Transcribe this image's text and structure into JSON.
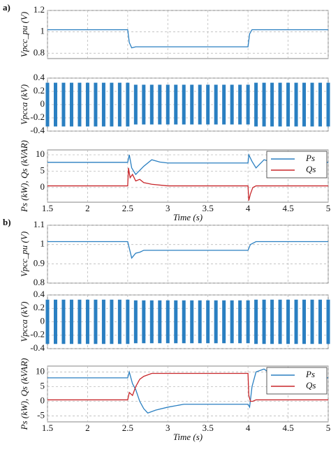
{
  "chart_data": [
    {
      "type": "line",
      "panel_label": "a)",
      "ylabel": "Vpcc_pu (V)",
      "xlim": [
        1.5,
        5
      ],
      "ylim": [
        0.75,
        1.2
      ],
      "yticks": [
        0.8,
        1,
        1.2
      ],
      "xticks": [
        1.5,
        2,
        2.5,
        3,
        3.5,
        4,
        4.5,
        5
      ],
      "grid": true,
      "series": [
        {
          "color": "#2a7fc1",
          "x": [
            1.5,
            2.5,
            2.52,
            2.55,
            2.6,
            3,
            4,
            4.02,
            4.05,
            5
          ],
          "values": [
            1.02,
            1.02,
            0.9,
            0.85,
            0.86,
            0.86,
            0.86,
            0.98,
            1.02,
            1.02
          ]
        }
      ]
    },
    {
      "type": "oscillation",
      "ylabel": "Vpcca (kV)",
      "xlim": [
        1.5,
        5
      ],
      "ylim": [
        -0.4,
        0.4
      ],
      "yticks": [
        -0.4,
        -0.2,
        0,
        0.2,
        0.4
      ],
      "xticks": [
        1.5,
        2,
        2.5,
        3,
        3.5,
        4,
        4.5,
        5
      ],
      "grid": true,
      "color": "#2a7fc1",
      "x": [
        1.5,
        1.6,
        1.7,
        1.8,
        1.9,
        2,
        2.1,
        2.2,
        2.3,
        2.4,
        2.5,
        2.6,
        2.7,
        2.8,
        2.9,
        3,
        3.1,
        3.2,
        3.3,
        3.4,
        3.5,
        3.6,
        3.7,
        3.8,
        3.9,
        4,
        4.1,
        4.2,
        4.3,
        4.4,
        4.5,
        4.6,
        4.7,
        4.8,
        4.9,
        5
      ],
      "amplitude": [
        0.33,
        0.33,
        0.33,
        0.33,
        0.33,
        0.33,
        0.33,
        0.33,
        0.33,
        0.33,
        0.33,
        0.3,
        0.3,
        0.3,
        0.3,
        0.3,
        0.3,
        0.3,
        0.3,
        0.3,
        0.3,
        0.3,
        0.3,
        0.3,
        0.3,
        0.3,
        0.33,
        0.33,
        0.33,
        0.33,
        0.33,
        0.33,
        0.33,
        0.33,
        0.33,
        0.33
      ]
    },
    {
      "type": "line",
      "ylabel": "Ps (kW), Qs (kVAR)",
      "xlabel": "Time (s)",
      "xlim": [
        1.5,
        5
      ],
      "ylim": [
        -4.5,
        11.5
      ],
      "yticks": [
        0,
        5,
        10
      ],
      "xticks": [
        1.5,
        2,
        2.5,
        3,
        3.5,
        4,
        4.5,
        5
      ],
      "grid": true,
      "legend": "upper right",
      "series": [
        {
          "name": "Ps",
          "color": "#2a7fc1",
          "x": [
            1.5,
            2.5,
            2.52,
            2.55,
            2.6,
            2.7,
            2.8,
            2.9,
            3,
            4,
            4.01,
            4.05,
            4.1,
            4.2,
            4.3,
            5
          ],
          "values": [
            7.7,
            7.7,
            10,
            6,
            4,
            6.5,
            8.5,
            7.8,
            7.5,
            7.5,
            10,
            8,
            6,
            8.5,
            7.7,
            7.7
          ]
        },
        {
          "name": "Qs",
          "color": "#c8262a",
          "x": [
            1.5,
            2.5,
            2.51,
            2.53,
            2.56,
            2.6,
            2.65,
            2.7,
            2.8,
            3,
            4,
            4.01,
            4.03,
            4.06,
            4.1,
            5
          ],
          "values": [
            0.5,
            0.5,
            6,
            3,
            4,
            2,
            2.5,
            1.5,
            1,
            0.5,
            0.5,
            -4,
            -2,
            0,
            0.5,
            0.5
          ]
        }
      ]
    },
    {
      "type": "line",
      "panel_label": "b)",
      "ylabel": "Vpcc_pu (V)",
      "xlim": [
        1.5,
        5
      ],
      "ylim": [
        0.8,
        1.1
      ],
      "yticks": [
        0.8,
        0.9,
        1,
        1.1
      ],
      "xticks": [
        1.5,
        2,
        2.5,
        3,
        3.5,
        4,
        4.5,
        5
      ],
      "grid": true,
      "series": [
        {
          "color": "#2a7fc1",
          "x": [
            1.5,
            2.5,
            2.55,
            2.6,
            2.65,
            2.7,
            3,
            4,
            4.03,
            4.1,
            5
          ],
          "values": [
            1.015,
            1.015,
            0.93,
            0.955,
            0.96,
            0.97,
            0.97,
            0.97,
            1.0,
            1.015,
            1.015
          ]
        }
      ]
    },
    {
      "type": "oscillation",
      "ylabel": "Vpcca (kV)",
      "xlim": [
        1.5,
        5
      ],
      "ylim": [
        -0.4,
        0.4
      ],
      "yticks": [
        -0.4,
        -0.2,
        0,
        0.2,
        0.4
      ],
      "xticks": [
        1.5,
        2,
        2.5,
        3,
        3.5,
        4,
        4.5,
        5
      ],
      "grid": true,
      "color": "#2a7fc1",
      "x": [
        1.5,
        1.6,
        1.7,
        1.8,
        1.9,
        2,
        2.1,
        2.2,
        2.3,
        2.4,
        2.5,
        2.6,
        2.7,
        2.8,
        2.9,
        3,
        3.1,
        3.2,
        3.3,
        3.4,
        3.5,
        3.6,
        3.7,
        3.8,
        3.9,
        4,
        4.1,
        4.2,
        4.3,
        4.4,
        4.5,
        4.6,
        4.7,
        4.8,
        4.9,
        5
      ],
      "amplitude": [
        0.33,
        0.33,
        0.33,
        0.33,
        0.33,
        0.33,
        0.33,
        0.33,
        0.33,
        0.33,
        0.33,
        0.32,
        0.32,
        0.32,
        0.32,
        0.32,
        0.32,
        0.32,
        0.32,
        0.32,
        0.32,
        0.32,
        0.32,
        0.32,
        0.32,
        0.32,
        0.33,
        0.33,
        0.33,
        0.33,
        0.33,
        0.33,
        0.33,
        0.33,
        0.33,
        0.33
      ]
    },
    {
      "type": "line",
      "ylabel": "Ps (kW), Qs (kVAR)",
      "xlabel": "Time (s)",
      "xlim": [
        1.5,
        5
      ],
      "ylim": [
        -7,
        12
      ],
      "yticks": [
        -5,
        0,
        5,
        10
      ],
      "xticks": [
        1.5,
        2,
        2.5,
        3,
        3.5,
        4,
        4.5,
        5
      ],
      "grid": true,
      "legend": "upper right",
      "series": [
        {
          "name": "Ps",
          "color": "#2a7fc1",
          "x": [
            1.5,
            2.5,
            2.52,
            2.56,
            2.6,
            2.65,
            2.7,
            2.75,
            2.85,
            3,
            3.2,
            4,
            4.02,
            4.05,
            4.1,
            4.2,
            4.3,
            4.4,
            5
          ],
          "values": [
            8,
            8,
            10,
            6,
            4,
            0,
            -2.5,
            -4,
            -3,
            -2,
            -1,
            -1,
            -2,
            5,
            10,
            11,
            9,
            8,
            8
          ]
        },
        {
          "name": "Qs",
          "color": "#c8262a",
          "x": [
            1.5,
            2.5,
            2.52,
            2.56,
            2.6,
            2.65,
            2.7,
            2.8,
            3,
            4,
            4.01,
            4.03,
            4.06,
            4.1,
            5
          ],
          "values": [
            0.5,
            0.5,
            3,
            2,
            5,
            7.5,
            8.5,
            9.5,
            9.5,
            9.5,
            2,
            0,
            0,
            0.5,
            0.5
          ]
        }
      ]
    }
  ]
}
